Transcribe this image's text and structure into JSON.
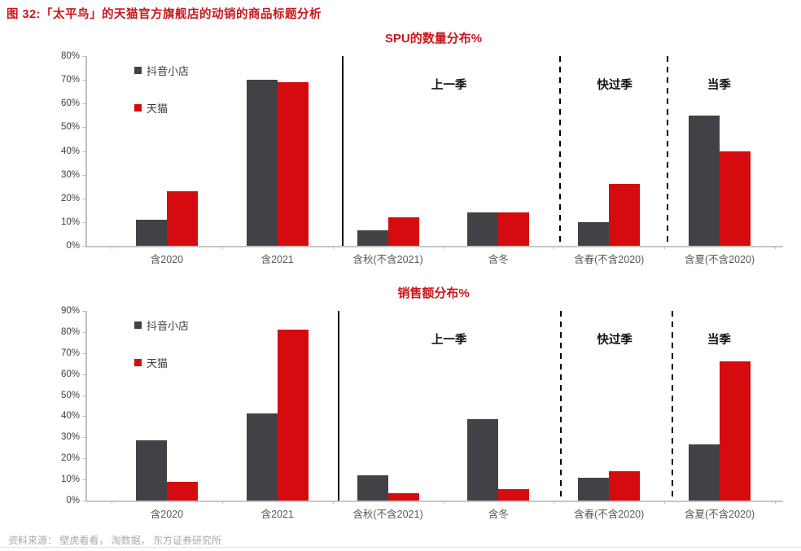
{
  "header": {
    "title": "图 32:「太平鸟」的天猫官方旗舰店的动销的商品标题分析"
  },
  "source_note": "资料来源： 壁虎看看， 淘数据， 东方证券研究所",
  "colors": {
    "douyin_bar": "#404245",
    "tmall_bar": "#d60b10",
    "accent_red": "#c9161c",
    "axis": "#bfbfbf"
  },
  "chart_data": [
    {
      "type": "bar",
      "title": "SPU的数量分布%",
      "categories": [
        "含2020",
        "含2021",
        "含秋(不含2021)",
        "含冬",
        "含春(不含2020)",
        "含夏(不含2020)"
      ],
      "series": [
        {
          "name": "抖音小店",
          "color": "#404245",
          "values": [
            11,
            70,
            6.5,
            14,
            10,
            55
          ]
        },
        {
          "name": "天猫",
          "color": "#d60b10",
          "values": [
            23,
            69,
            12,
            14,
            26,
            40
          ]
        }
      ],
      "ylim": [
        0,
        80
      ],
      "ytick_step": 10,
      "ytick_suffix": "%",
      "grid": false,
      "legend_position": "top-left-inside",
      "section_labels": [
        {
          "text": "上一季",
          "center_pct": 52
        },
        {
          "text": "快过季",
          "center_pct": 75.8
        },
        {
          "text": "当季",
          "center_pct": 90.8
        }
      ],
      "dividers": [
        {
          "style": "solid",
          "position_pct": 36.6
        },
        {
          "style": "dashed",
          "position_pct": 67.8
        },
        {
          "style": "dashed",
          "position_pct": 83.3
        }
      ]
    },
    {
      "type": "bar",
      "title": "销售额分布%",
      "categories": [
        "含2020",
        "含2021",
        "含秋(不含2021)",
        "含冬",
        "含春(不含2020)",
        "含夏(不含2020)"
      ],
      "series": [
        {
          "name": "抖音小店",
          "color": "#404245",
          "values": [
            28.5,
            41.5,
            12,
            38.5,
            11,
            26.5
          ]
        },
        {
          "name": "天猫",
          "color": "#d60b10",
          "values": [
            9,
            81,
            3.5,
            5.5,
            14,
            66
          ]
        }
      ],
      "ylim": [
        0,
        90
      ],
      "ytick_step": 10,
      "ytick_suffix": "%",
      "grid": false,
      "legend_position": "top-left-inside",
      "section_labels": [
        {
          "text": "上一季",
          "center_pct": 52
        },
        {
          "text": "快过季",
          "center_pct": 75.8
        },
        {
          "text": "当季",
          "center_pct": 90.8
        }
      ],
      "dividers": [
        {
          "style": "solid",
          "position_pct": 36
        },
        {
          "style": "dashed",
          "position_pct": 68
        },
        {
          "style": "dashed",
          "position_pct": 84
        }
      ]
    }
  ]
}
